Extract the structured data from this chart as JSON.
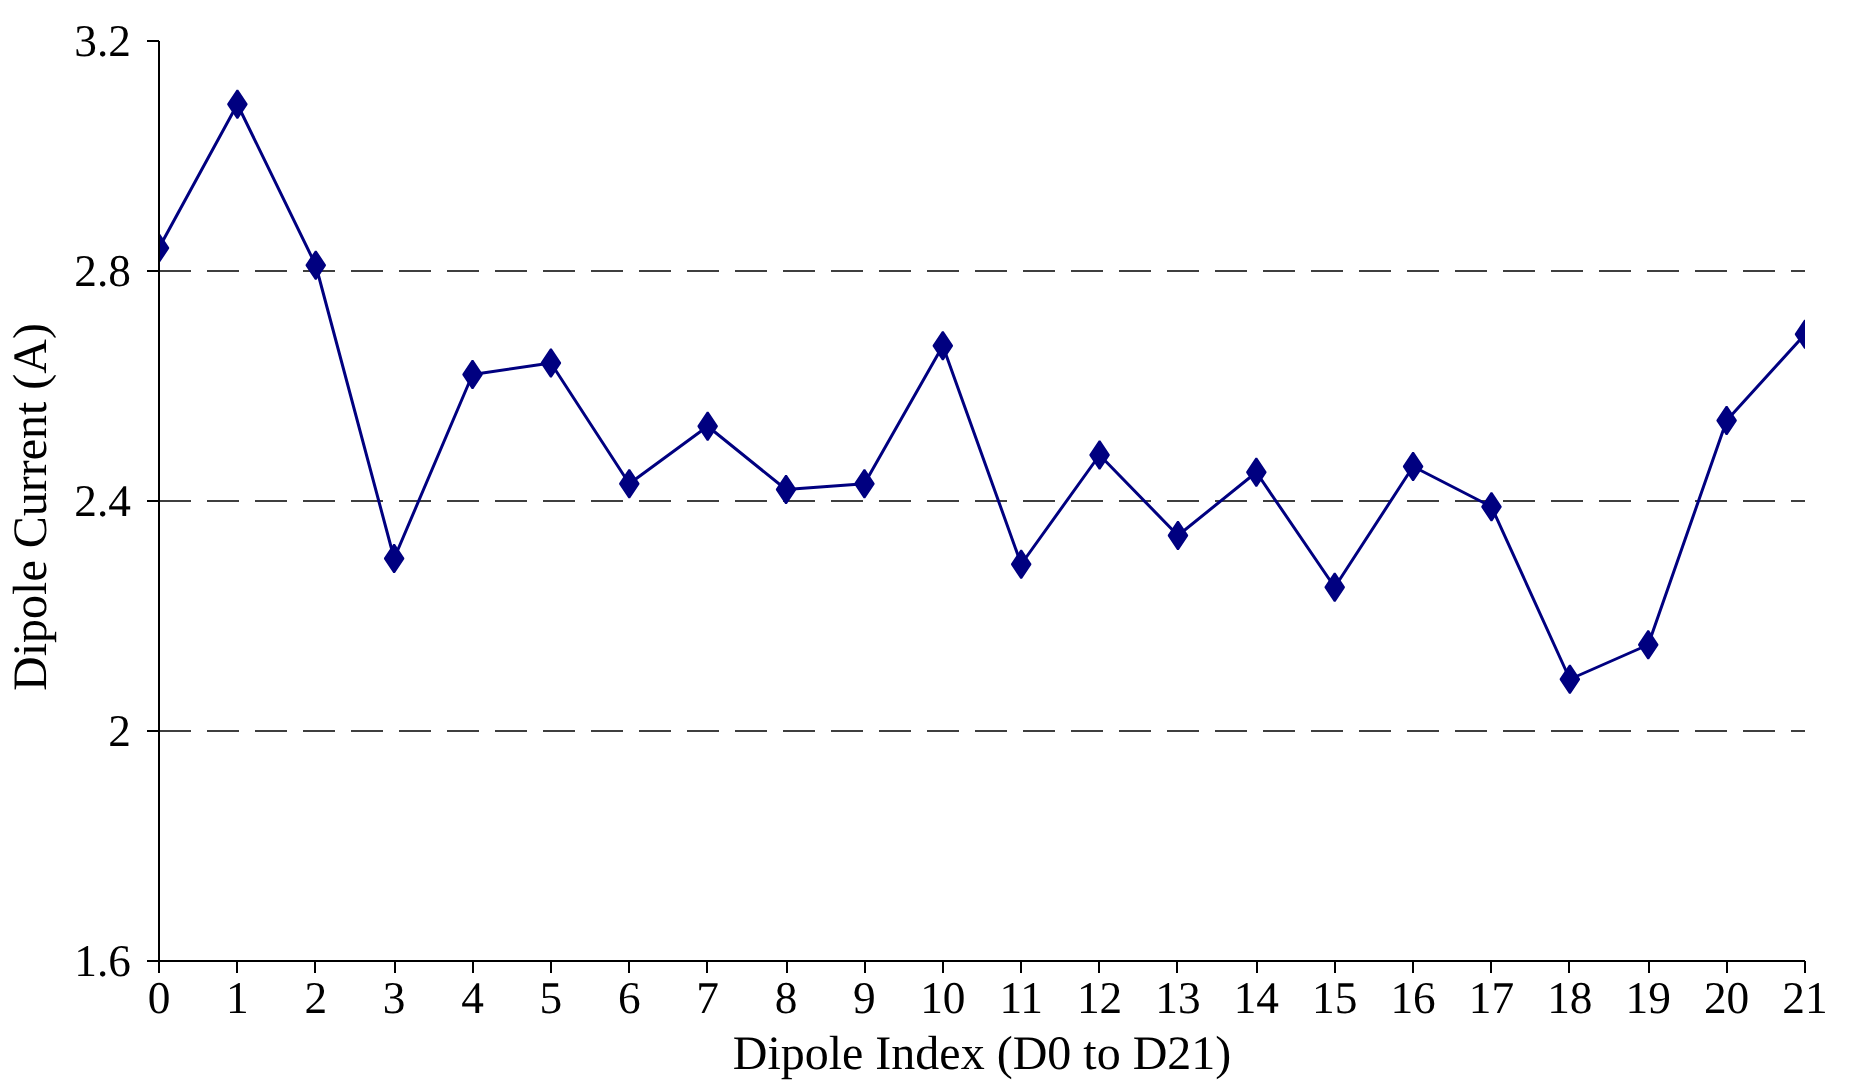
{
  "chart_data": {
    "type": "line",
    "xlabel": "Dipole Index (D0 to D21)",
    "ylabel": "Dipole Current  (A)",
    "x": [
      0,
      1,
      2,
      3,
      4,
      5,
      6,
      7,
      8,
      9,
      10,
      11,
      12,
      13,
      14,
      15,
      16,
      17,
      18,
      19,
      20,
      21
    ],
    "series": [
      {
        "color": "#000080",
        "values": [
          2.84,
          3.09,
          2.81,
          2.3,
          2.62,
          2.64,
          2.43,
          2.53,
          2.42,
          2.43,
          2.67,
          2.29,
          2.48,
          2.34,
          2.45,
          2.25,
          2.46,
          2.39,
          2.09,
          2.15,
          2.54,
          2.69
        ]
      }
    ],
    "xlim": [
      0,
      21
    ],
    "xticks": [
      0,
      1,
      2,
      3,
      4,
      5,
      6,
      7,
      8,
      9,
      10,
      11,
      12,
      13,
      14,
      15,
      16,
      17,
      18,
      19,
      20,
      21
    ],
    "ylim": [
      1.6,
      3.2
    ],
    "yticks": [
      1.6,
      2,
      2.4,
      2.8,
      3.2
    ],
    "grid": "y",
    "marker": "diamond",
    "line_style": "solid"
  }
}
